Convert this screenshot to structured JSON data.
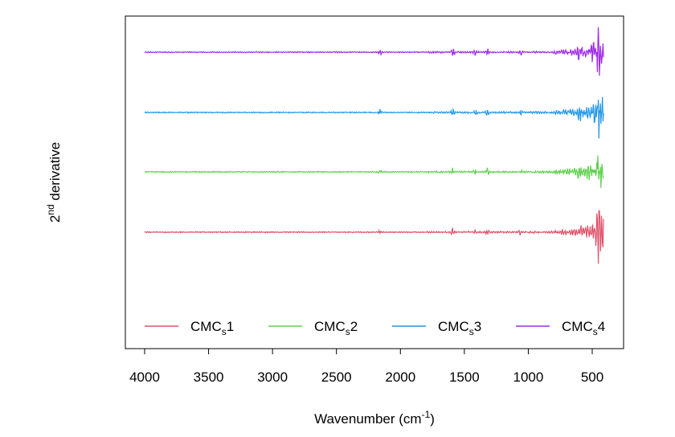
{
  "chart_data": {
    "type": "line",
    "title": "",
    "xlabel": {
      "text": "Wavenumber (cm",
      "sup": "-1",
      "tail": ")"
    },
    "ylabel": {
      "pre": "2",
      "sup": "nd",
      "post": " derivative"
    },
    "x_reversed": true,
    "xlim": [
      4000,
      400
    ],
    "x_ticks": [
      "4000",
      "3500",
      "3000",
      "2500",
      "2000",
      "1500",
      "1000",
      "500"
    ],
    "y_ticks_shown": false,
    "grid": false,
    "legend_position": "bottom",
    "series": [
      {
        "name": "CMCs1",
        "label_main": "CMC",
        "label_sub": "s",
        "label_num": "1",
        "color": "#DF536B",
        "offset": 0
      },
      {
        "name": "CMCs2",
        "label_main": "CMC",
        "label_sub": "s",
        "label_num": "2",
        "color": "#61D04F",
        "offset": 1
      },
      {
        "name": "CMCs3",
        "label_main": "CMC",
        "label_sub": "s",
        "label_num": "3",
        "color": "#2297E6",
        "offset": 2
      },
      {
        "name": "CMCs4",
        "label_main": "CMC",
        "label_sub": "s",
        "label_num": "4",
        "color": "#9E2BE8",
        "offset": 3
      }
    ],
    "spectral_features": [
      {
        "wavenumber": 2160,
        "relative_amplitude": 0.35
      },
      {
        "wavenumber": 1590,
        "relative_amplitude": 0.45
      },
      {
        "wavenumber": 1415,
        "relative_amplitude": 0.4
      },
      {
        "wavenumber": 1320,
        "relative_amplitude": 0.35
      },
      {
        "wavenumber": 1060,
        "relative_amplitude": 0.3
      },
      {
        "wavenumber": 600,
        "relative_amplitude": 0.8
      },
      {
        "wavenumber": 450,
        "relative_amplitude": 2.0
      }
    ]
  }
}
